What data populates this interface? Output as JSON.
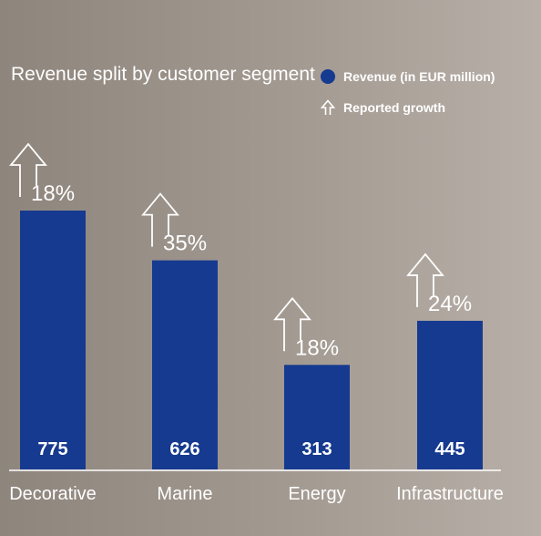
{
  "chart_data": {
    "type": "bar",
    "title": "Revenue split by customer segment",
    "categories": [
      "Decorative",
      "Marine",
      "Energy",
      "Infrastructure"
    ],
    "series": [
      {
        "name": "Revenue (in EUR million)",
        "values": [
          775,
          626,
          313,
          445
        ]
      },
      {
        "name": "Reported growth",
        "values": [
          "18%",
          "35%",
          "18%",
          "24%"
        ]
      }
    ],
    "ylim": [
      0,
      800
    ],
    "grid": false,
    "legend_position": "top-right"
  },
  "colors": {
    "bar": "#163a8f",
    "arrow": "#ffffff",
    "text": "#ffffff"
  },
  "legend": {
    "revenue_icon": "circle-icon",
    "growth_icon": "up-arrow-icon"
  }
}
